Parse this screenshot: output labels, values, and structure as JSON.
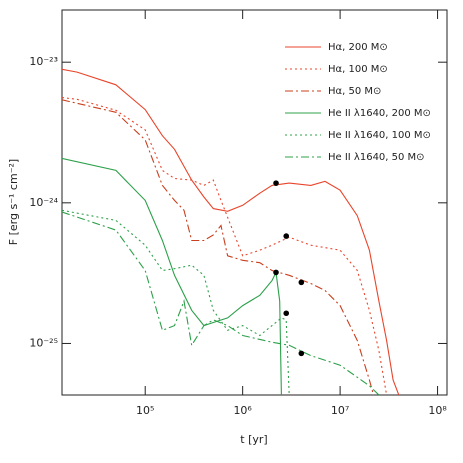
{
  "chart_data": {
    "type": "line",
    "xlabel": "t [yr]",
    "ylabel": "F [erg s⁻¹ cm⁻²]",
    "xscale": "log",
    "yscale": "log",
    "xlim": [
      14000,
      125000000
    ],
    "ylim": [
      4.3e-26,
      2.35e-23
    ],
    "xticks": [
      {
        "value": 100000,
        "label": "10⁵"
      },
      {
        "value": 1000000,
        "label": "10⁶"
      },
      {
        "value": 10000000,
        "label": "10⁷"
      },
      {
        "value": 100000000,
        "label": "10⁸"
      }
    ],
    "yticks": [
      {
        "value": 1e-25,
        "label": "10⁻²⁵"
      },
      {
        "value": 1e-24,
        "label": "10⁻²⁴"
      },
      {
        "value": 1e-23,
        "label": "10⁻²³"
      }
    ],
    "legend": "upper right",
    "series": [
      {
        "name": "Hα, 200 M⊙",
        "color": "#e8452c",
        "dash": "solid",
        "x": [
          14000,
          20000,
          50000,
          100000,
          150000,
          200000,
          300000,
          400000,
          500000,
          700000,
          1000000,
          1500000,
          2000000,
          3000000,
          5000000,
          7000000,
          10000000,
          15000000,
          20000000,
          25000000,
          30000000,
          35000000,
          40000000
        ],
        "values": [
          8.9e-24,
          8.5e-24,
          6.9e-24,
          4.6e-24,
          3e-24,
          2.4e-24,
          1.45e-24,
          1.1e-24,
          9.1e-25,
          8.7e-25,
          9.6e-25,
          1.17e-24,
          1.33e-24,
          1.38e-24,
          1.33e-24,
          1.42e-24,
          1.23e-24,
          8.1e-25,
          4.6e-25,
          2e-25,
          1.05e-25,
          5.5e-26,
          4.3e-26
        ]
      },
      {
        "name": "Hα, 100 M⊙",
        "color": "#e8452c",
        "dash": "dotted",
        "x": [
          14000,
          20000,
          50000,
          100000,
          150000,
          200000,
          300000,
          400000,
          500000,
          600000,
          1000000,
          1500000,
          2000000,
          3000000,
          5000000,
          10000000,
          15000000,
          20000000,
          25000000,
          30000000
        ],
        "values": [
          5.6e-24,
          5.45e-24,
          4.55e-24,
          3.3e-24,
          1.7e-24,
          1.49e-24,
          1.45e-24,
          1.33e-24,
          1.45e-24,
          1.04e-24,
          4.2e-25,
          4.6e-25,
          5e-25,
          5.7e-25,
          5e-25,
          4.6e-25,
          3.3e-25,
          1.72e-25,
          8.9e-26,
          4.3e-26
        ]
      },
      {
        "name": "Hα, 50 M⊙",
        "color": "#c9401e",
        "dash": "dashdot",
        "x": [
          14000,
          50000,
          100000,
          150000,
          200000,
          250000,
          300000,
          400000,
          500000,
          600000,
          700000,
          1000000,
          1500000,
          2000000,
          3000000,
          5000000,
          7000000,
          10000000,
          15000000,
          20000000,
          22000000
        ],
        "values": [
          5.4e-24,
          4.4e-24,
          2.8e-24,
          1.33e-24,
          1.04e-24,
          8.85e-25,
          5.4e-25,
          5.4e-25,
          5.9e-25,
          6.9e-25,
          4.2e-25,
          3.9e-25,
          3.75e-25,
          3.3e-25,
          3.05e-25,
          2.67e-25,
          2.38e-25,
          1.86e-25,
          1.05e-25,
          5.5e-26,
          4.3e-26
        ]
      },
      {
        "name": "He II λ1640, 200 M⊙",
        "color": "#2ca04a",
        "dash": "solid",
        "x": [
          14000,
          50000,
          100000,
          150000,
          200000,
          300000,
          400000,
          500000,
          700000,
          1000000,
          1500000,
          2000000,
          2200000,
          2400000,
          2500000
        ],
        "values": [
          2.07e-24,
          1.7e-24,
          1.04e-24,
          5.4e-25,
          3.05e-25,
          1.72e-25,
          1.34e-25,
          1.41e-25,
          1.52e-25,
          1.86e-25,
          2.2e-25,
          2.8e-25,
          3.2e-25,
          2e-25,
          4.3e-26
        ]
      },
      {
        "name": "He II λ1640, 100 M⊙",
        "color": "#2ca04a",
        "dash": "dotted",
        "x": [
          14000,
          50000,
          100000,
          150000,
          200000,
          300000,
          400000,
          500000,
          700000,
          1000000,
          1500000,
          2000000,
          2500000,
          2800000,
          3000000
        ],
        "values": [
          8.85e-25,
          7.5e-25,
          5e-25,
          3.3e-25,
          3.4e-25,
          3.6e-25,
          3.05e-25,
          1.72e-25,
          1.24e-25,
          1.34e-25,
          1.14e-25,
          1.34e-25,
          1.52e-25,
          1.47e-25,
          4.3e-26
        ]
      },
      {
        "name": "He II λ1640, 50 M⊙",
        "color": "#2ca04a",
        "dash": "dashdot",
        "x": [
          14000,
          50000,
          100000,
          150000,
          200000,
          250000,
          300000,
          400000,
          500000,
          700000,
          1000000,
          2000000,
          3000000,
          5000000,
          10000000,
          20000000,
          25000000
        ],
        "values": [
          8.6e-25,
          6.4e-25,
          3.3e-25,
          1.24e-25,
          1.34e-25,
          2e-25,
          9.7e-26,
          1.34e-25,
          1.47e-25,
          1.34e-25,
          1.14e-25,
          1.02e-25,
          9.7e-26,
          8.2e-26,
          7e-26,
          5e-26,
          4.3e-26
        ]
      }
    ],
    "points": {
      "color": "#000000",
      "x": [
        2200000,
        2800000,
        4000000,
        2200000,
        2800000,
        4000000
      ],
      "values": [
        1.38e-24,
        5.8e-25,
        2.72e-25,
        3.2e-25,
        1.64e-25,
        8.5e-26
      ]
    }
  }
}
